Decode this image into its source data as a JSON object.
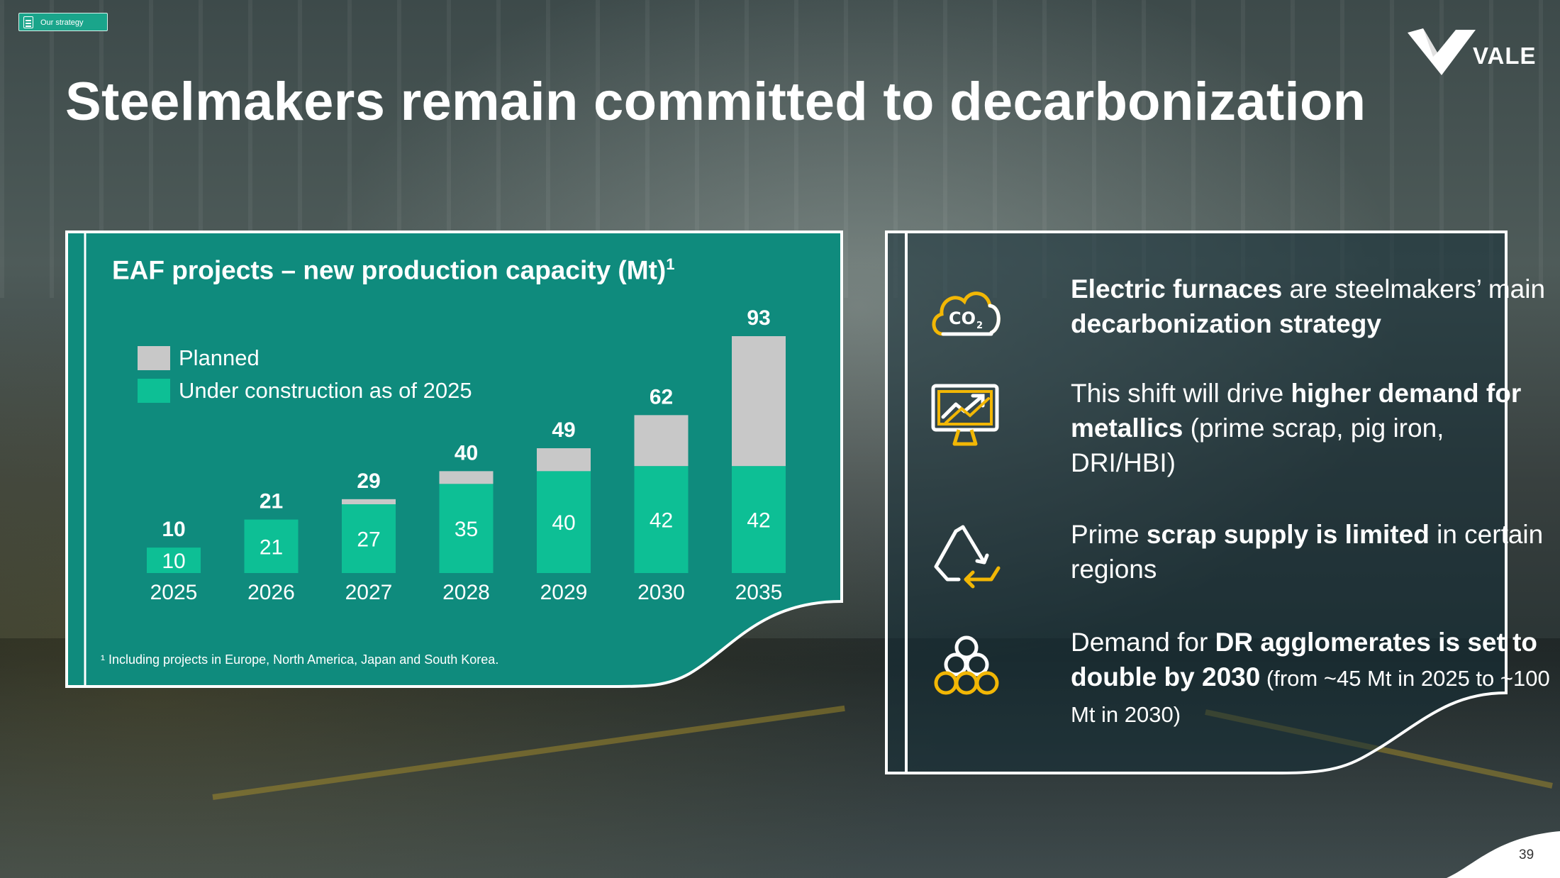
{
  "section_tag": "Our strategy",
  "brand": "VALE",
  "title": "Steelmakers remain committed to decarbonization",
  "chart_data": {
    "type": "bar",
    "title": "EAF projects – new production capacity (Mt)",
    "title_footnote_marker": "1",
    "categories": [
      "2025",
      "2026",
      "2027",
      "2028",
      "2029",
      "2030",
      "2035"
    ],
    "series": [
      {
        "name": "Under construction as of 2025",
        "color": "#0dbf95",
        "values": [
          10,
          21,
          27,
          35,
          40,
          42,
          42
        ]
      },
      {
        "name": "Planned",
        "color": "#c8c8c8",
        "values": [
          0,
          0,
          2,
          5,
          9,
          20,
          51
        ]
      }
    ],
    "totals": [
      10,
      21,
      29,
      40,
      49,
      62,
      93
    ],
    "stacked": true,
    "ylim": [
      0,
      93
    ],
    "grid": false,
    "legend_position": "top-left",
    "footnote": "¹ Including projects in Europe, North America, Japan and South Korea."
  },
  "points": [
    {
      "icon": "co2-cloud-icon",
      "segments": [
        {
          "t": "Electric furnaces",
          "b": true
        },
        {
          "t": " are steelmakers’ main "
        },
        {
          "t": "decarbonization strategy",
          "b": true
        }
      ]
    },
    {
      "icon": "rising-chart-monitor-icon",
      "segments": [
        {
          "t": "This shift will drive "
        },
        {
          "t": "higher demand for metallics",
          "b": true
        },
        {
          "t": " (prime scrap, pig iron, DRI/HBI)"
        }
      ]
    },
    {
      "icon": "recycle-icon",
      "segments": [
        {
          "t": "Prime "
        },
        {
          "t": "scrap supply is limited",
          "b": true
        },
        {
          "t": " in certain regions"
        }
      ]
    },
    {
      "icon": "pellets-icon",
      "segments": [
        {
          "t": "Demand for "
        },
        {
          "t": "DR agglomerates is set to double by 2030",
          "b": true
        },
        {
          "t": " (from ~45 Mt in 2025 to ~100 Mt in 2030)",
          "small": true
        }
      ]
    }
  ],
  "page_number": "39",
  "colors": {
    "teal": "#0f8b7d",
    "accent_green": "#0dbf95",
    "planned_gray": "#c8c8c8",
    "icon_gold": "#f2b705"
  }
}
